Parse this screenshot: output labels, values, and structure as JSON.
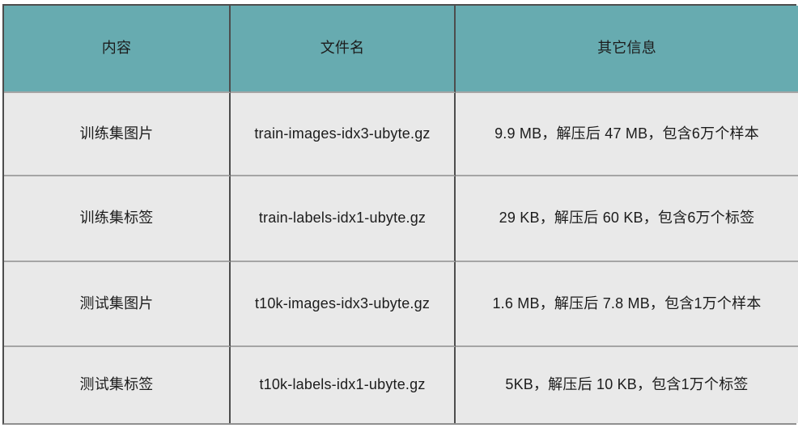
{
  "chart_data": {
    "type": "table",
    "title": "",
    "columns": [
      "内容",
      "文件名",
      "其它信息"
    ],
    "rows": [
      [
        "训练集图片",
        "train-images-idx3-ubyte.gz",
        "9.9 MB，解压后 47 MB，包含6万个样本"
      ],
      [
        "训练集标签",
        "train-labels-idx1-ubyte.gz",
        "29 KB，解压后 60 KB，包含6万个标签"
      ],
      [
        "测试集图片",
        "t10k-images-idx3-ubyte.gz",
        "1.6 MB，解压后 7.8 MB，包含1万个样本"
      ],
      [
        "测试集标签",
        "t10k-labels-idx1-ubyte.gz",
        "5KB，解压后 10 KB，包含1万个标签"
      ]
    ],
    "header_bg": "#67abb0",
    "row_bg": "#e9e9e9",
    "vertical_border_color": "#4d4d4d",
    "horizontal_border_color": "#a5a5a5"
  }
}
